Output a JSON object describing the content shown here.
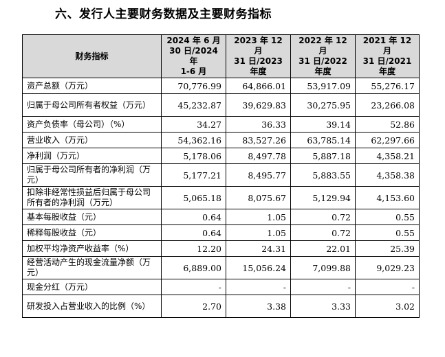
{
  "heading": "六、发行人主要财务数据及主要财务指标",
  "table": {
    "headers": [
      "财务指标",
      "2024 年 6 月\n30 日/2024 年\n1-6 月",
      "2023 年 12 月\n31 日/2023\n年度",
      "2022 年 12 月\n31 日/2022\n年度",
      "2021 年 12 月\n31 日/2021\n年度"
    ],
    "rows": [
      [
        "资产总额（万元）",
        "70,776.99",
        "64,866.01",
        "53,917.09",
        "55,276.17"
      ],
      [
        "归属于母公司所有者权益（万元）",
        "45,232.87",
        "39,629.83",
        "30,275.95",
        "23,266.08"
      ],
      [
        "资产负债率（母公司）（%）",
        "34.27",
        "36.33",
        "39.14",
        "52.86"
      ],
      [
        "营业收入（万元）",
        "54,362.16",
        "83,527.26",
        "63,785.14",
        "62,297.66"
      ],
      [
        "净利润（万元）",
        "5,178.06",
        "8,497.78",
        "5,887.18",
        "4,358.21"
      ],
      [
        "归属于母公司所有者的净利润（万元）",
        "5,177.21",
        "8,495.77",
        "5,883.55",
        "4,358.38"
      ],
      [
        "扣除非经常性损益后归属于母公司所有者的净利润（万元）",
        "5,065.18",
        "8,075.67",
        "5,129.94",
        "4,153.60"
      ],
      [
        "基本每股收益（元）",
        "0.64",
        "1.05",
        "0.72",
        "0.55"
      ],
      [
        "稀释每股收益（元）",
        "0.64",
        "1.05",
        "0.72",
        "0.55"
      ],
      [
        "加权平均净资产收益率（%）",
        "12.20",
        "24.31",
        "22.01",
        "25.39"
      ],
      [
        "经营活动产生的现金流量净额（万元）",
        "6,889.00",
        "15,056.24",
        "7,099.88",
        "9,029.23"
      ],
      [
        "现金分红（万元）",
        "-",
        "-",
        "-",
        "-"
      ],
      [
        "研发投入占营业收入的比例（%）",
        "2.70",
        "3.38",
        "3.33",
        "3.02"
      ]
    ]
  }
}
